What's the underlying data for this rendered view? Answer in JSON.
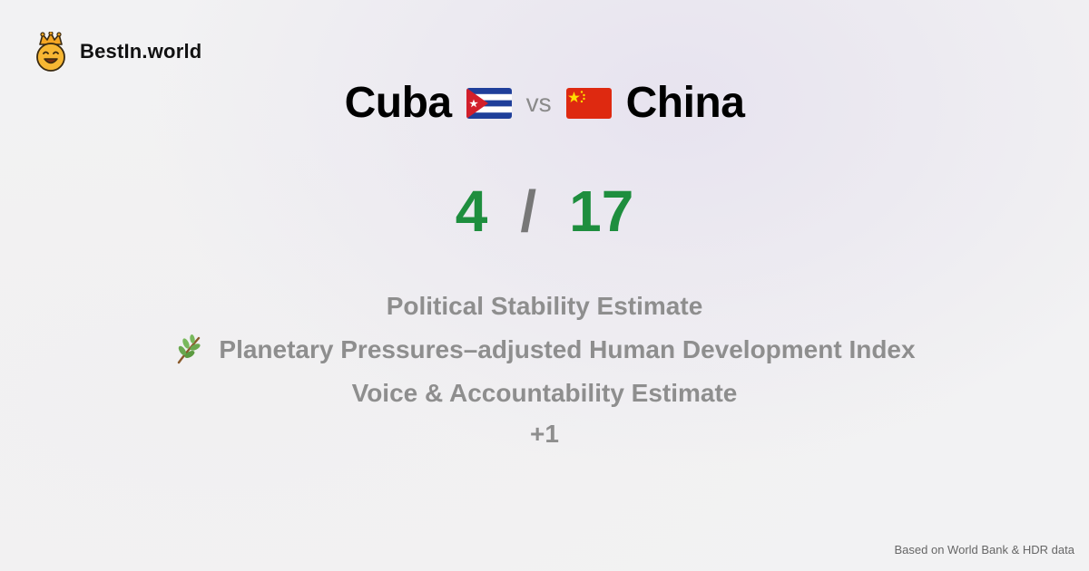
{
  "brand": {
    "name": "BestIn.world",
    "logo_icon": "crowned-smiley-icon"
  },
  "comparison": {
    "left_country": "Cuba",
    "left_flag": "cuba-flag-icon",
    "vs_label": "vs",
    "right_country": "China",
    "right_flag": "china-flag-icon"
  },
  "score": {
    "left": "4",
    "separator": "/",
    "right": "17",
    "color": "#1e8e3e"
  },
  "metrics": [
    {
      "label": "Political Stability Estimate",
      "icon": ""
    },
    {
      "label": "Planetary Pressures–adjusted Human Development Index",
      "icon": "leafy-branch-icon"
    },
    {
      "label": "Voice & Accountability Estimate",
      "icon": ""
    }
  ],
  "more_label": "+1",
  "footer": {
    "source": "Based on World Bank & HDR data"
  }
}
